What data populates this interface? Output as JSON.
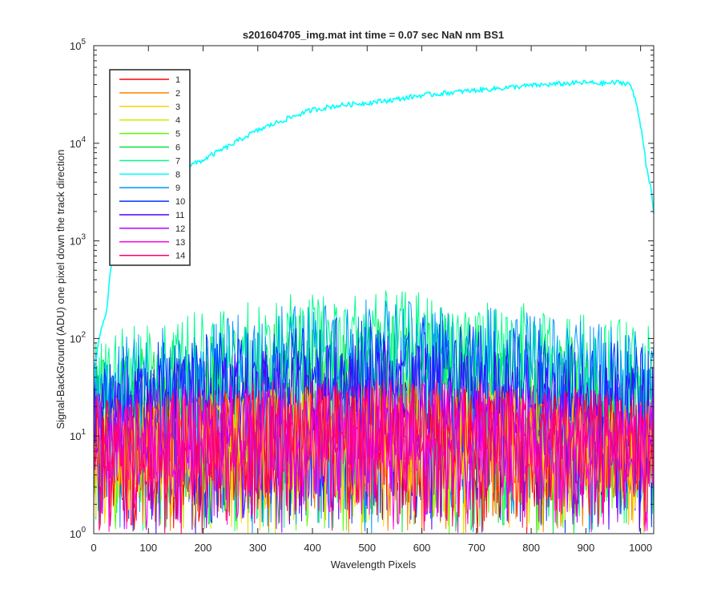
{
  "chart_data": {
    "type": "line",
    "title": "s201604705_img.mat int time = 0.07 sec  NaN nm BS1",
    "xlabel": "Wavelength Pixels",
    "ylabel": "Signal-BackGround (ADU) one pixel down the track direction",
    "xlim": [
      0,
      1024
    ],
    "ylim": [
      1,
      100000
    ],
    "yscale": "log",
    "grid": false,
    "legend_position": "top-left",
    "x_ticks": [
      "0",
      "100",
      "200",
      "300",
      "400",
      "500",
      "600",
      "700",
      "800",
      "900",
      "1000"
    ],
    "x_tick_values": [
      0,
      100,
      200,
      300,
      400,
      500,
      600,
      700,
      800,
      900,
      1000
    ],
    "y_tick_exponents": [
      "0",
      "1",
      "2",
      "3",
      "4",
      "5"
    ],
    "y_tick_base": "10",
    "y_tick_values": [
      1,
      10,
      100,
      1000,
      10000,
      100000
    ],
    "series": [
      {
        "name": "1",
        "color": "#ff0000",
        "x": [
          0,
          100,
          200,
          300,
          400,
          500,
          600,
          700,
          800,
          900,
          1024
        ],
        "values": [
          8,
          9,
          10,
          10,
          11,
          11,
          11,
          10,
          10,
          9,
          8
        ]
      },
      {
        "name": "2",
        "color": "#ff8000",
        "x": [
          0,
          100,
          200,
          300,
          400,
          500,
          600,
          700,
          800,
          900,
          1024
        ],
        "values": [
          8,
          9,
          10,
          10,
          11,
          11,
          11,
          10,
          10,
          9,
          8
        ]
      },
      {
        "name": "3",
        "color": "#ffd400",
        "x": [
          0,
          100,
          200,
          300,
          400,
          500,
          600,
          700,
          800,
          900,
          1024
        ],
        "values": [
          8,
          9,
          10,
          10,
          11,
          11,
          11,
          10,
          10,
          9,
          8
        ]
      },
      {
        "name": "4",
        "color": "#c8f000",
        "x": [
          0,
          100,
          200,
          300,
          400,
          500,
          600,
          700,
          800,
          900,
          1024
        ],
        "values": [
          9,
          10,
          11,
          12,
          12,
          13,
          12,
          12,
          11,
          10,
          9
        ]
      },
      {
        "name": "5",
        "color": "#55ff00",
        "x": [
          0,
          100,
          200,
          300,
          400,
          500,
          600,
          700,
          800,
          900,
          1024
        ],
        "values": [
          12,
          16,
          20,
          25,
          30,
          32,
          30,
          27,
          22,
          18,
          14
        ]
      },
      {
        "name": "6",
        "color": "#00e83c",
        "x": [
          0,
          100,
          200,
          300,
          400,
          500,
          600,
          700,
          800,
          900,
          1024
        ],
        "values": [
          20,
          28,
          38,
          50,
          60,
          65,
          62,
          55,
          45,
          35,
          25
        ]
      },
      {
        "name": "7",
        "color": "#00ff8c",
        "x": [
          0,
          100,
          200,
          300,
          400,
          500,
          600,
          700,
          800,
          900,
          1024
        ],
        "values": [
          40,
          50,
          65,
          85,
          100,
          105,
          100,
          90,
          75,
          60,
          45
        ]
      },
      {
        "name": "8",
        "color": "#00ffff",
        "x": [
          0,
          25,
          50,
          75,
          100,
          125,
          150,
          175,
          200,
          250,
          300,
          350,
          400,
          450,
          500,
          550,
          600,
          650,
          700,
          750,
          800,
          850,
          900,
          930,
          960,
          980,
          1000,
          1010,
          1024
        ],
        "values": [
          30,
          200,
          1500,
          3500,
          4800,
          5300,
          5600,
          5900,
          6700,
          9500,
          13500,
          17500,
          22000,
          24500,
          26000,
          28000,
          31000,
          33000,
          35000,
          37000,
          39000,
          40500,
          42000,
          41000,
          42000,
          41000,
          15000,
          6000,
          1800
        ]
      },
      {
        "name": "9",
        "color": "#0096ff",
        "x": [
          0,
          100,
          200,
          300,
          400,
          500,
          600,
          700,
          800,
          900,
          1024
        ],
        "values": [
          30,
          40,
          50,
          65,
          80,
          85,
          80,
          72,
          60,
          50,
          38
        ]
      },
      {
        "name": "10",
        "color": "#0032ff",
        "x": [
          0,
          100,
          200,
          300,
          400,
          500,
          600,
          700,
          800,
          900,
          1024
        ],
        "values": [
          25,
          30,
          38,
          45,
          55,
          60,
          57,
          50,
          42,
          35,
          28
        ]
      },
      {
        "name": "11",
        "color": "#4b00ff",
        "x": [
          0,
          100,
          200,
          300,
          400,
          500,
          600,
          700,
          800,
          900,
          1024
        ],
        "values": [
          15,
          18,
          22,
          26,
          30,
          32,
          30,
          27,
          23,
          20,
          17
        ]
      },
      {
        "name": "12",
        "color": "#b400ff",
        "x": [
          0,
          100,
          200,
          300,
          400,
          500,
          600,
          700,
          800,
          900,
          1024
        ],
        "values": [
          9,
          10,
          11,
          12,
          13,
          13,
          13,
          12,
          11,
          10,
          9
        ]
      },
      {
        "name": "13",
        "color": "#ff00e6",
        "x": [
          0,
          100,
          200,
          300,
          400,
          500,
          600,
          700,
          800,
          900,
          1024
        ],
        "values": [
          9,
          10,
          11,
          12,
          13,
          13,
          13,
          12,
          11,
          10,
          9
        ]
      },
      {
        "name": "14",
        "color": "#ff0064",
        "x": [
          0,
          100,
          200,
          300,
          400,
          500,
          600,
          700,
          800,
          900,
          1024
        ],
        "values": [
          9,
          10,
          11,
          12,
          13,
          13,
          13,
          12,
          11,
          10,
          9
        ]
      }
    ]
  }
}
